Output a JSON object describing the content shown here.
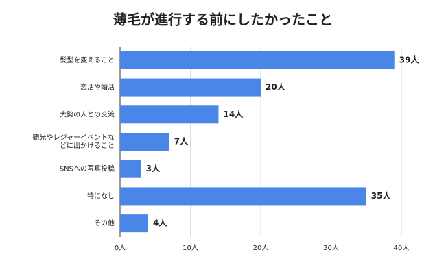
{
  "chart_data": {
    "type": "bar",
    "orientation": "horizontal",
    "title": "薄毛が進行する前にしたかったこと",
    "categories": [
      "髪型を変えること",
      "恋活や婚活",
      "大勢の人との交流",
      "観光やレジャーイベントなどに出かけること",
      "SNSへの写真投稿",
      "特になし",
      "その他"
    ],
    "values": [
      39,
      20,
      14,
      7,
      3,
      35,
      4
    ],
    "value_labels": [
      "39人",
      "20人",
      "14人",
      "7人",
      "3人",
      "35人",
      "4人"
    ],
    "color": "#4a86e8",
    "xlim": [
      0,
      40
    ],
    "xticks": [
      {
        "value": 0,
        "label": "0人"
      },
      {
        "value": 10,
        "label": "10人"
      },
      {
        "value": 20,
        "label": "20人"
      },
      {
        "value": 30,
        "label": "30人"
      },
      {
        "value": 40,
        "label": "40人"
      }
    ],
    "grid": true
  }
}
